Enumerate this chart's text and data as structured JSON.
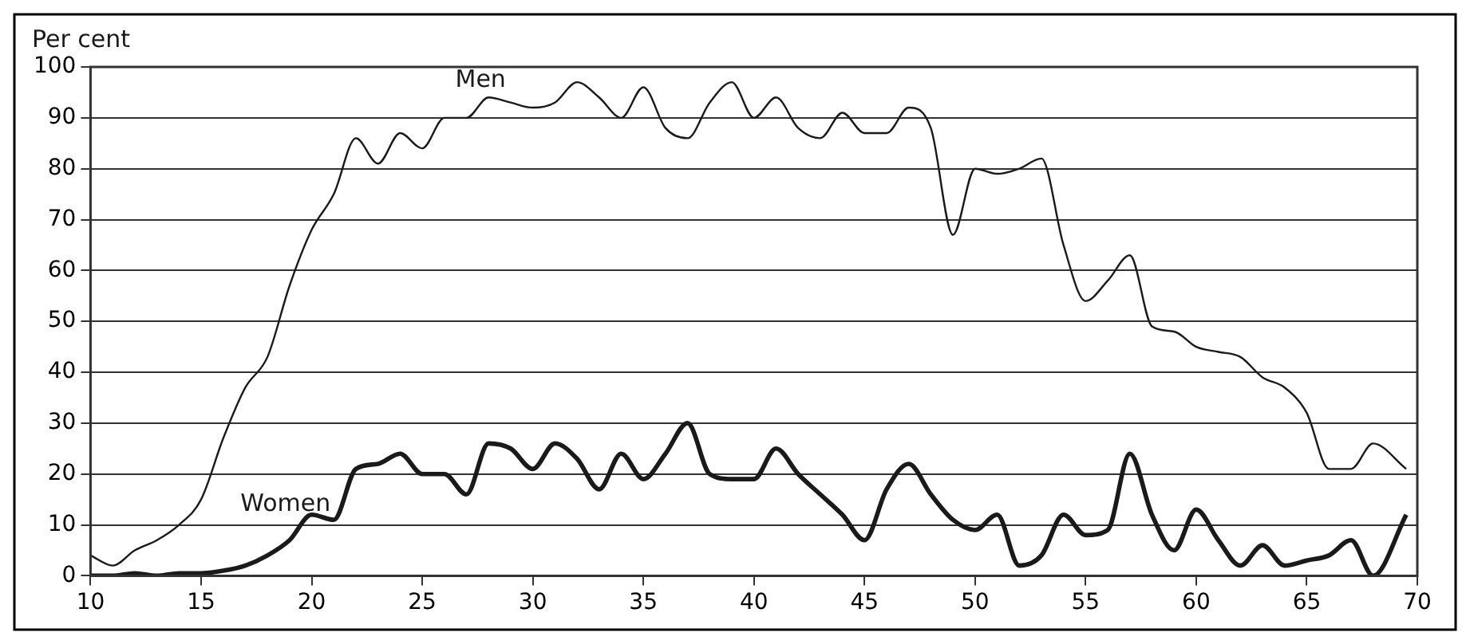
{
  "chart_data": {
    "type": "line",
    "ylabel": "Per cent",
    "x": [
      10,
      11,
      12,
      13,
      14,
      15,
      16,
      17,
      18,
      19,
      20,
      21,
      22,
      23,
      24,
      25,
      26,
      27,
      28,
      29,
      30,
      31,
      32,
      33,
      34,
      35,
      36,
      37,
      38,
      39,
      40,
      41,
      42,
      43,
      44,
      45,
      46,
      47,
      48,
      49,
      50,
      51,
      52,
      53,
      54,
      55,
      56,
      57,
      58,
      59,
      60,
      61,
      62,
      63,
      64,
      65,
      66,
      67,
      68,
      69.5
    ],
    "series": [
      {
        "name": "Men",
        "color": "#1a1a1a",
        "values": [
          4,
          2,
          5,
          7,
          10,
          15,
          27,
          37,
          43,
          57,
          68,
          75,
          86,
          81,
          87,
          84,
          90,
          90,
          94,
          93,
          92,
          93,
          97,
          94,
          90,
          96,
          88,
          86,
          93,
          97,
          90,
          94,
          88,
          86,
          91,
          87,
          87,
          92,
          88,
          67,
          80,
          79,
          80,
          82,
          65,
          54,
          58,
          63,
          49,
          48,
          45,
          44,
          43,
          39,
          37,
          32,
          21,
          21,
          26,
          21
        ]
      },
      {
        "name": "Women",
        "color": "#1a1a1a",
        "values": [
          0,
          0,
          0.5,
          0,
          0.5,
          0.5,
          1,
          2,
          4,
          7,
          12,
          11,
          21,
          22,
          24,
          20,
          20,
          16,
          26,
          25,
          21,
          26,
          23,
          17,
          24,
          19,
          24,
          30,
          20,
          19,
          19,
          25,
          20,
          16,
          12,
          7,
          17,
          22,
          16,
          11,
          9,
          12,
          2,
          4,
          12,
          8,
          9,
          24,
          12,
          5,
          13,
          7,
          2,
          6,
          2,
          3,
          4,
          7,
          0,
          12
        ]
      }
    ],
    "xlim": [
      10,
      70
    ],
    "xticks": [
      10,
      15,
      20,
      25,
      30,
      35,
      40,
      45,
      50,
      55,
      60,
      65,
      70
    ],
    "ylim": [
      0,
      100
    ],
    "yticks": [
      0,
      10,
      20,
      30,
      40,
      50,
      60,
      70,
      80,
      90,
      100
    ],
    "grid": "y",
    "legend": false,
    "marker": "none",
    "line_style": "solid"
  }
}
